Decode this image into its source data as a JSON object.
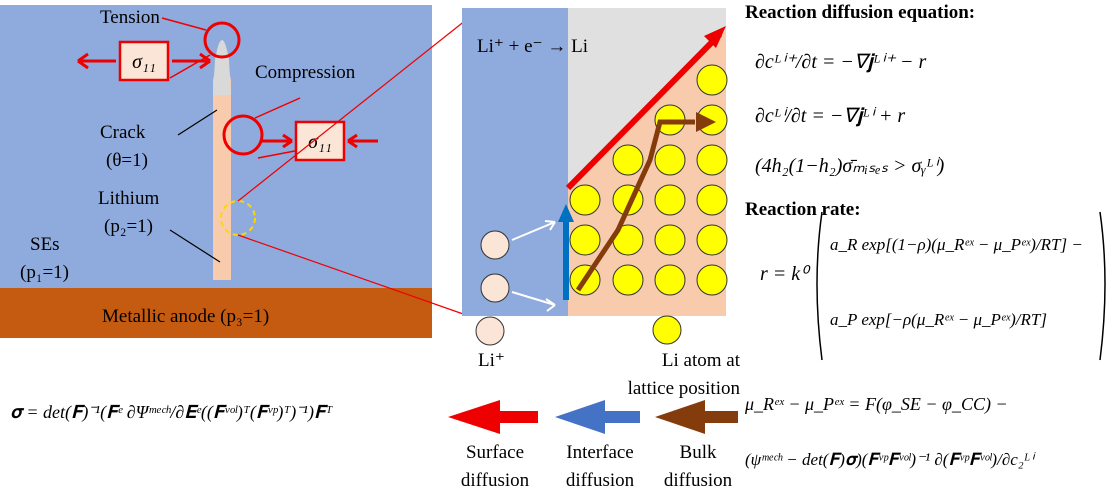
{
  "left_panel": {
    "tension": "Tension",
    "compression": "Compression",
    "sigma_tension": "σ₁₁",
    "sigma_compression": "σ₁₁",
    "crack": "Crack",
    "crack_phase": "(θ=1)",
    "lithium": "Lithium",
    "lithium_phase": "(p₂=1)",
    "ses": "SEs",
    "ses_phase": "(p₁=1)",
    "anode": "Metallic anode (p₃=1)"
  },
  "middle_panel": {
    "reaction": "Li⁺ + e⁻ → Li",
    "li_ion": "Li⁺",
    "li_atom_line1": "Li atom at",
    "li_atom_line2": "lattice position"
  },
  "legend": {
    "surface_line1": "Surface",
    "surface_line2": "diffusion",
    "interface_line1": "Interface",
    "interface_line2": "diffusion",
    "bulk_line1": "Bulk",
    "bulk_line2": "diffusion"
  },
  "equations": {
    "reaction_diffusion_title": "Reaction diffusion equation:",
    "eq1": "∂cᴸⁱ⁺/∂t = −∇𝐣ᴸⁱ⁺ − r",
    "eq2": "∂cᴸⁱ/∂t = −∇𝐣ᴸⁱ + r",
    "eq3": "(4h₂(1−h₂)σ̄ₘᵢₛₑₛ > σᵧᴸⁱ)",
    "reaction_rate_title": "Reaction rate:",
    "rate_lhs": "r = k⁰",
    "rate_term1": "a_R exp[(1−ρ)(μ_Rᵉˣ − μ_Pᵉˣ)/RT] −",
    "rate_term2": "a_P exp[−ρ(μ_Rᵉˣ − μ_Pᵉˣ)/RT]",
    "mu_eq1": "μ_Rᵉˣ − μ_Pᵉˣ = F(φ_SE − φ_CC) −",
    "mu_eq2": "(ψᵐᵉᶜʰ − det(𝐅)𝛔)(𝐅ᵛᵖ𝐅ᵛᵒˡ)⁻¹ ∂(𝐅ᵛᵖ𝐅ᵛᵒˡ)/∂c₂ᴸⁱ",
    "stress": "𝛔 = det(𝐅)⁻¹(𝐅ᵉ ∂Ψᵐᵉᶜʰ/∂𝐄ᵉ((𝐅ᵛᵒˡ)ᵀ(𝐅ᵛᵖ)ᵀ)⁻¹)𝐅ᵀ"
  }
}
